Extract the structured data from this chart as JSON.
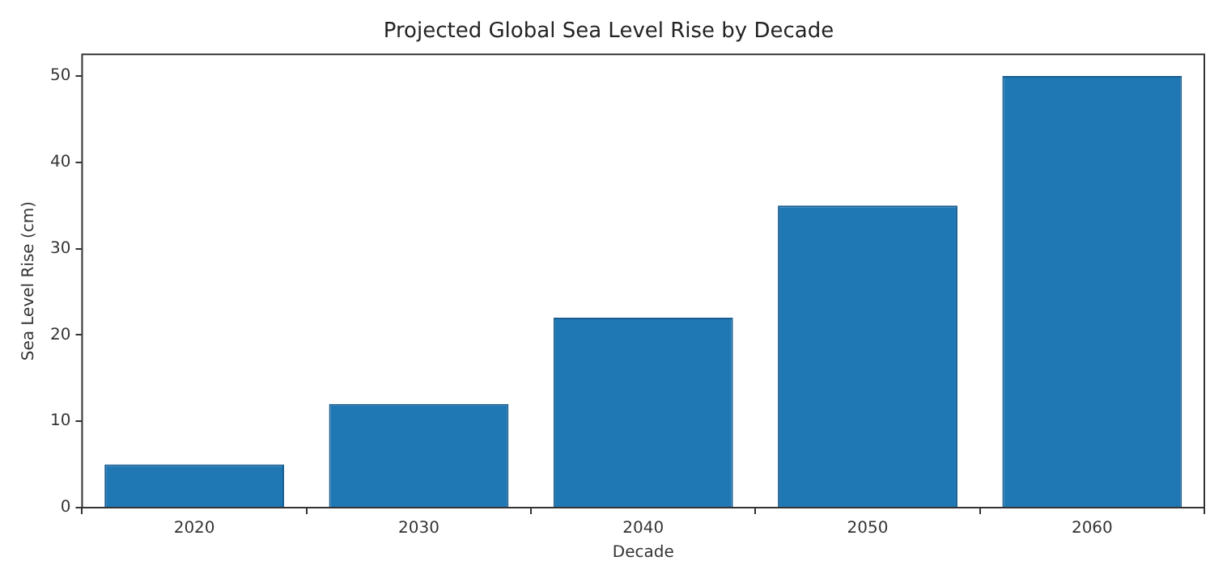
{
  "chart_data": {
    "type": "bar",
    "title": "Projected Global Sea Level Rise by Decade",
    "xlabel": "Decade",
    "ylabel": "Sea Level Rise (cm)",
    "categories": [
      "2020",
      "2030",
      "2040",
      "2050",
      "2060"
    ],
    "values": [
      5,
      12,
      22,
      35,
      50
    ],
    "color": "#1f77b4",
    "ylim": [
      0,
      52.5
    ],
    "yticks": [
      0,
      10,
      20,
      30,
      40,
      50
    ],
    "grid": false,
    "legend": false
  }
}
